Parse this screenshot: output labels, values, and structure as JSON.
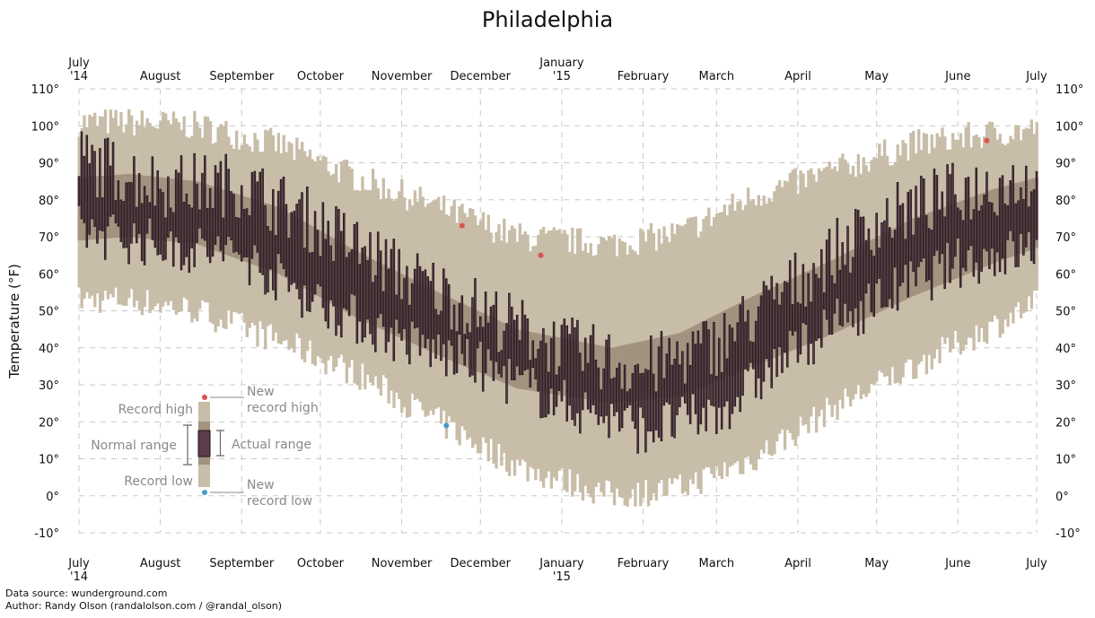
{
  "chart_data": {
    "type": "bar",
    "title": "Philadelphia",
    "ylabel": "Temperature (°F)",
    "ylim": [
      -10,
      110
    ],
    "y_ticks": [
      "110°",
      "100°",
      "90°",
      "80°",
      "70°",
      "60°",
      "50°",
      "40°",
      "30°",
      "20°",
      "10°",
      "0°",
      "-10°"
    ],
    "x_ticks": [
      {
        "date": "2014-07-01",
        "label": "July",
        "sub": "'14"
      },
      {
        "date": "2014-08-01",
        "label": "August",
        "sub": ""
      },
      {
        "date": "2014-09-01",
        "label": "September",
        "sub": ""
      },
      {
        "date": "2014-10-01",
        "label": "October",
        "sub": ""
      },
      {
        "date": "2014-11-01",
        "label": "November",
        "sub": ""
      },
      {
        "date": "2014-12-01",
        "label": "December",
        "sub": ""
      },
      {
        "date": "2015-01-01",
        "label": "January",
        "sub": "'15"
      },
      {
        "date": "2015-02-01",
        "label": "February",
        "sub": ""
      },
      {
        "date": "2015-03-01",
        "label": "March",
        "sub": ""
      },
      {
        "date": "2015-04-01",
        "label": "April",
        "sub": ""
      },
      {
        "date": "2015-05-01",
        "label": "May",
        "sub": ""
      },
      {
        "date": "2015-06-01",
        "label": "June",
        "sub": ""
      },
      {
        "date": "2015-07-01",
        "label": "July",
        "sub": ""
      }
    ],
    "x_range": [
      "2014-07-01",
      "2015-07-01"
    ],
    "grid": true,
    "colors": {
      "record": "#c8bda8",
      "normal": "#a1937f",
      "actual": "#5e3c4c",
      "actual_edge": "#1e1418",
      "new_high": "#d9534f",
      "new_low": "#4a98c9"
    },
    "layers": [
      "Record high/low range",
      "Normal range",
      "Actual range"
    ],
    "seasonal_profile": [
      {
        "date": "2014-07-01",
        "record_high": 101,
        "record_low": 53,
        "normal_high": 86,
        "normal_low": 69
      },
      {
        "date": "2014-07-20",
        "record_high": 101,
        "record_low": 53,
        "normal_high": 87,
        "normal_low": 70
      },
      {
        "date": "2014-08-15",
        "record_high": 100,
        "record_low": 50,
        "normal_high": 85,
        "normal_low": 68
      },
      {
        "date": "2014-09-15",
        "record_high": 95,
        "record_low": 42,
        "normal_high": 78,
        "normal_low": 60
      },
      {
        "date": "2014-10-15",
        "record_high": 86,
        "record_low": 33,
        "normal_high": 66,
        "normal_low": 48
      },
      {
        "date": "2014-11-15",
        "record_high": 78,
        "record_low": 20,
        "normal_high": 55,
        "normal_low": 38
      },
      {
        "date": "2014-12-15",
        "record_high": 70,
        "record_low": 8,
        "normal_high": 45,
        "normal_low": 29
      },
      {
        "date": "2015-01-20",
        "record_high": 68,
        "record_low": 0,
        "normal_high": 40,
        "normal_low": 25
      },
      {
        "date": "2015-02-15",
        "record_high": 71,
        "record_low": 2,
        "normal_high": 44,
        "normal_low": 27
      },
      {
        "date": "2015-03-15",
        "record_high": 81,
        "record_low": 10,
        "normal_high": 54,
        "normal_low": 35
      },
      {
        "date": "2015-04-15",
        "record_high": 88,
        "record_low": 24,
        "normal_high": 64,
        "normal_low": 44
      },
      {
        "date": "2015-05-15",
        "record_high": 95,
        "record_low": 35,
        "normal_high": 75,
        "normal_low": 54
      },
      {
        "date": "2015-06-15",
        "record_high": 98,
        "record_low": 46,
        "normal_high": 83,
        "normal_low": 63
      },
      {
        "date": "2015-07-01",
        "record_high": 99,
        "record_low": 52,
        "normal_high": 86,
        "normal_low": 67
      }
    ],
    "actual_profile": [
      {
        "date": "2014-07-01",
        "high": 91,
        "low": 72
      },
      {
        "date": "2014-08-01",
        "high": 84,
        "low": 68
      },
      {
        "date": "2014-09-01",
        "high": 84,
        "low": 65
      },
      {
        "date": "2014-10-01",
        "high": 73,
        "low": 52
      },
      {
        "date": "2014-11-01",
        "high": 60,
        "low": 42
      },
      {
        "date": "2014-12-01",
        "high": 50,
        "low": 35
      },
      {
        "date": "2015-01-01",
        "high": 40,
        "low": 25
      },
      {
        "date": "2015-02-01",
        "high": 34,
        "low": 18
      },
      {
        "date": "2015-03-01",
        "high": 41,
        "low": 22
      },
      {
        "date": "2015-04-01",
        "high": 58,
        "low": 40
      },
      {
        "date": "2015-05-01",
        "high": 74,
        "low": 53
      },
      {
        "date": "2015-06-01",
        "high": 82,
        "low": 63
      },
      {
        "date": "2015-07-01",
        "high": 86,
        "low": 67
      }
    ],
    "new_record_highs": [
      {
        "date": "2014-11-24",
        "value": 73
      },
      {
        "date": "2014-12-24",
        "value": 65
      },
      {
        "date": "2015-06-12",
        "value": 96
      }
    ],
    "new_record_lows": [
      {
        "date": "2014-11-18",
        "value": 19
      }
    ],
    "legend": {
      "record_high": "Record high",
      "new_record_high_line1": "New",
      "new_record_high_line2": "record high",
      "normal_range": "Normal range",
      "actual_range": "Actual range",
      "record_low": "Record low",
      "new_record_low_line1": "New",
      "new_record_low_line2": "record low"
    }
  },
  "footer": {
    "source": "Data source: wunderground.com",
    "author": "Author: Randy Olson (randalolson.com / @randal_olson)"
  }
}
